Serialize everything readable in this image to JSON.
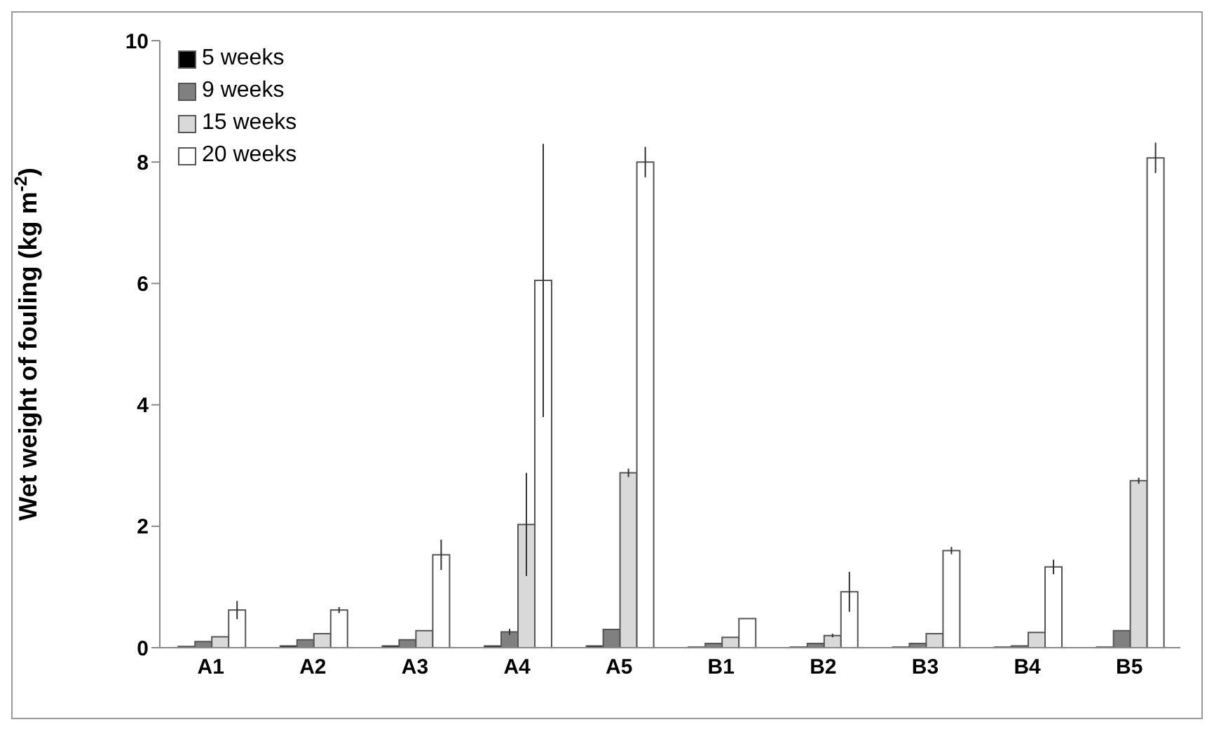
{
  "chart_data": {
    "type": "bar",
    "ylabel": "Wet weight of fouling (kg m$^{-2}$)",
    "categories": [
      "A1",
      "A2",
      "A3",
      "A4",
      "A5",
      "B1",
      "B2",
      "B3",
      "B4",
      "B5"
    ],
    "series": [
      {
        "name": "5 weeks",
        "color": "#000000",
        "values": [
          0.02,
          0.03,
          0.03,
          0.03,
          0.03,
          0.01,
          0.01,
          0.01,
          0.01,
          0.01
        ]
      },
      {
        "name": "9 weeks",
        "color": "#808080",
        "values": [
          0.1,
          0.13,
          0.13,
          0.26,
          0.3,
          0.07,
          0.07,
          0.07,
          0.03,
          0.28
        ],
        "errors": [
          null,
          null,
          null,
          0.05,
          null,
          null,
          null,
          null,
          null,
          null
        ]
      },
      {
        "name": "15 weeks",
        "color": "#d9d9d9",
        "values": [
          0.18,
          0.23,
          0.28,
          2.03,
          2.88,
          0.17,
          0.2,
          0.23,
          0.25,
          2.75
        ],
        "errors": [
          null,
          null,
          null,
          0.85,
          0.07,
          null,
          0.03,
          null,
          null,
          0.05
        ]
      },
      {
        "name": "20 weeks",
        "color": "#ffffff",
        "values": [
          0.62,
          0.62,
          1.53,
          6.05,
          8.0,
          0.48,
          0.92,
          1.6,
          1.33,
          8.07
        ],
        "errors": [
          0.15,
          0.05,
          0.25,
          2.25,
          0.25,
          null,
          0.33,
          0.06,
          0.12,
          0.25
        ]
      }
    ],
    "ylim": [
      0,
      10
    ],
    "yticks": [
      0,
      2,
      4,
      6,
      8,
      10
    ],
    "grid": false,
    "legend": "top left"
  }
}
